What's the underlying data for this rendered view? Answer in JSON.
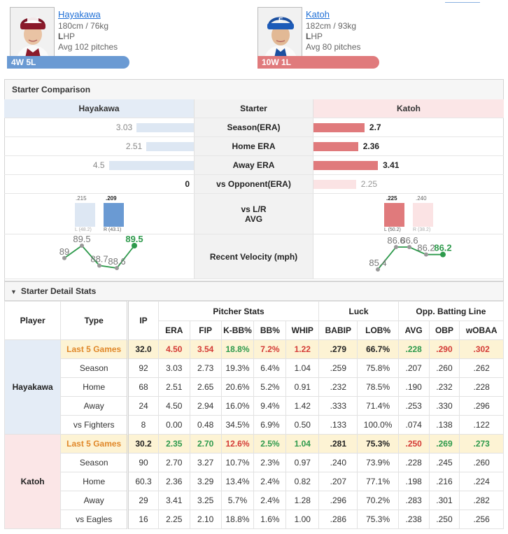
{
  "header": {
    "left": {
      "name": "Hayakawa",
      "size": "180cm / 76kg",
      "throws_letter": "L",
      "throws_rest": "HP",
      "avg_pitches": "Avg 102 pitches",
      "record": "4W 5L"
    },
    "right": {
      "name": "Katoh",
      "size": "182cm / 93kg",
      "throws_letter": "L",
      "throws_rest": "HP",
      "avg_pitches": "Avg 80 pitches",
      "record": "10W 1L"
    }
  },
  "comparison": {
    "title": "Starter Comparison",
    "col_left": "Hayakawa",
    "col_mid": "Starter",
    "col_right": "Katoh",
    "rows": [
      {
        "label": "Season(ERA)",
        "left": "3.03",
        "right": "2.7",
        "left_num": 3.03,
        "right_num": 2.7
      },
      {
        "label": "Home ERA",
        "left": "2.51",
        "right": "2.36",
        "left_num": 2.51,
        "right_num": 2.36
      },
      {
        "label": "Away ERA",
        "left": "4.5",
        "right": "3.41",
        "left_num": 4.5,
        "right_num": 3.41
      },
      {
        "label": "vs Opponent(ERA)",
        "left": "0",
        "right": "2.25",
        "left_num": 0,
        "right_num": 2.25
      }
    ],
    "lr_label_1": "vs L/R",
    "lr_label_2": "AVG",
    "lr_left": {
      "l_avg": ".215",
      "r_avg": ".209",
      "l_pa": "L (48.2)",
      "r_pa": "R (43.1)"
    },
    "lr_right": {
      "l_avg": ".225",
      "r_avg": ".240",
      "l_pa": "L (50.2)",
      "r_pa": "R (38.2)"
    },
    "velocity_label": "Recent Velocity (mph)",
    "velocity_left": [
      "89",
      "89.5",
      "88.7",
      "88.6",
      "89.5"
    ],
    "velocity_right": [
      "85.4",
      "86.6",
      "86.6",
      "86.2",
      "86.2"
    ]
  },
  "colors": {
    "blue": "#6a9ad3",
    "blue_light": "#dde7f3",
    "red": "#e07a7c",
    "red_light": "#fbe3e4",
    "green": "#2e9a4c"
  },
  "detail": {
    "title": "Starter Detail Stats",
    "headers": {
      "player": "Player",
      "type": "Type",
      "ip": "IP",
      "pitcher_stats": "Pitcher Stats",
      "luck": "Luck",
      "opp": "Opp. Batting Line",
      "cols": [
        "ERA",
        "FIP",
        "K-BB%",
        "BB%",
        "WHIP",
        "BABIP",
        "LOB%",
        "AVG",
        "OBP",
        "wOBAA"
      ]
    },
    "players": [
      {
        "name": "Hayakawa",
        "rows": [
          {
            "type": "Last 5 Games",
            "vals": [
              "32.0",
              "4.50",
              "3.54",
              "18.8%",
              "7.2%",
              "1.22",
              ".279",
              "66.7%",
              ".228",
              ".290",
              ".302"
            ]
          },
          {
            "type": "Season",
            "vals": [
              "92",
              "3.03",
              "2.73",
              "19.3%",
              "6.4%",
              "1.04",
              ".259",
              "75.8%",
              ".207",
              ".260",
              ".262"
            ]
          },
          {
            "type": "Home",
            "vals": [
              "68",
              "2.51",
              "2.65",
              "20.6%",
              "5.2%",
              "0.91",
              ".232",
              "78.5%",
              ".190",
              ".232",
              ".228"
            ]
          },
          {
            "type": "Away",
            "vals": [
              "24",
              "4.50",
              "2.94",
              "16.0%",
              "9.4%",
              "1.42",
              ".333",
              "71.4%",
              ".253",
              ".330",
              ".296"
            ]
          },
          {
            "type": "vs Fighters",
            "vals": [
              "8",
              "0.00",
              "0.48",
              "34.5%",
              "6.9%",
              "0.50",
              ".133",
              "100.0%",
              ".074",
              ".138",
              ".122"
            ]
          }
        ]
      },
      {
        "name": "Katoh",
        "rows": [
          {
            "type": "Last 5 Games",
            "vals": [
              "30.2",
              "2.35",
              "2.70",
              "12.6%",
              "2.5%",
              "1.04",
              ".281",
              "75.3%",
              ".250",
              ".269",
              ".273"
            ]
          },
          {
            "type": "Season",
            "vals": [
              "90",
              "2.70",
              "3.27",
              "10.7%",
              "2.3%",
              "0.97",
              ".240",
              "73.9%",
              ".228",
              ".245",
              ".260"
            ]
          },
          {
            "type": "Home",
            "vals": [
              "60.3",
              "2.36",
              "3.29",
              "13.4%",
              "2.4%",
              "0.82",
              ".207",
              "77.1%",
              ".198",
              ".216",
              ".224"
            ]
          },
          {
            "type": "Away",
            "vals": [
              "29",
              "3.41",
              "3.25",
              "5.7%",
              "2.4%",
              "1.28",
              ".296",
              "70.2%",
              ".283",
              ".301",
              ".282"
            ]
          },
          {
            "type": "vs Eagles",
            "vals": [
              "16",
              "2.25",
              "2.10",
              "18.8%",
              "1.6%",
              "1.00",
              ".286",
              "75.3%",
              ".238",
              ".250",
              ".256"
            ]
          }
        ]
      }
    ]
  }
}
